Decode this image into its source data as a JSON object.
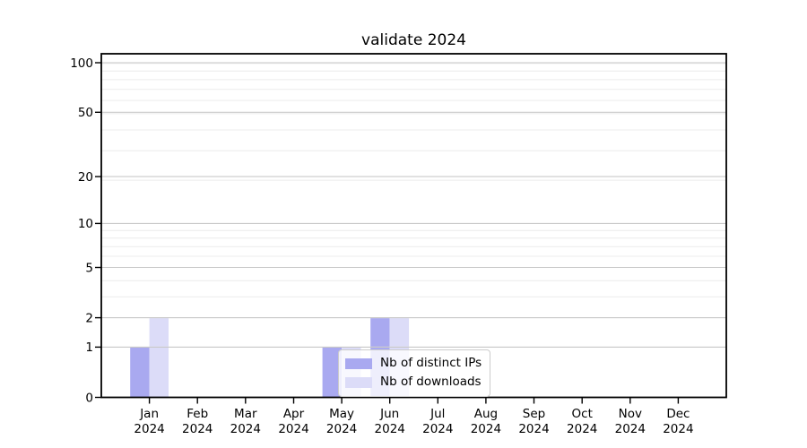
{
  "chart_data": {
    "type": "bar",
    "title": "validate 2024",
    "categories": [
      "Jan",
      "Feb",
      "Mar",
      "Apr",
      "May",
      "Jun",
      "Jul",
      "Aug",
      "Sep",
      "Oct",
      "Nov",
      "Dec"
    ],
    "category_year": "2024",
    "series": [
      {
        "name": "Nb of distinct IPs",
        "color": "#a9a9f0",
        "values": [
          1,
          0,
          0,
          0,
          1,
          2,
          0,
          0,
          0,
          0,
          0,
          0
        ]
      },
      {
        "name": "Nb of downloads",
        "color": "#dcdcf8",
        "values": [
          2,
          0,
          0,
          0,
          1,
          2,
          0,
          0,
          0,
          0,
          0,
          0
        ]
      }
    ],
    "xlabel": "",
    "ylabel": "",
    "yscale": "log1p",
    "y_ticks": [
      0,
      1,
      2,
      5,
      10,
      20,
      50,
      100
    ],
    "y_minor_ticks": [
      1,
      2,
      3,
      4,
      5,
      6,
      7,
      8,
      9,
      19,
      29,
      39,
      49,
      59,
      69,
      79,
      89,
      99
    ],
    "ylim": [
      0,
      112
    ],
    "grid": "both",
    "legend": {
      "position": "inside-lower-center"
    }
  },
  "colors": {
    "major_grid": "#c9c9c9",
    "minor_grid": "#ececec",
    "axis": "#000000",
    "text": "#000000"
  }
}
